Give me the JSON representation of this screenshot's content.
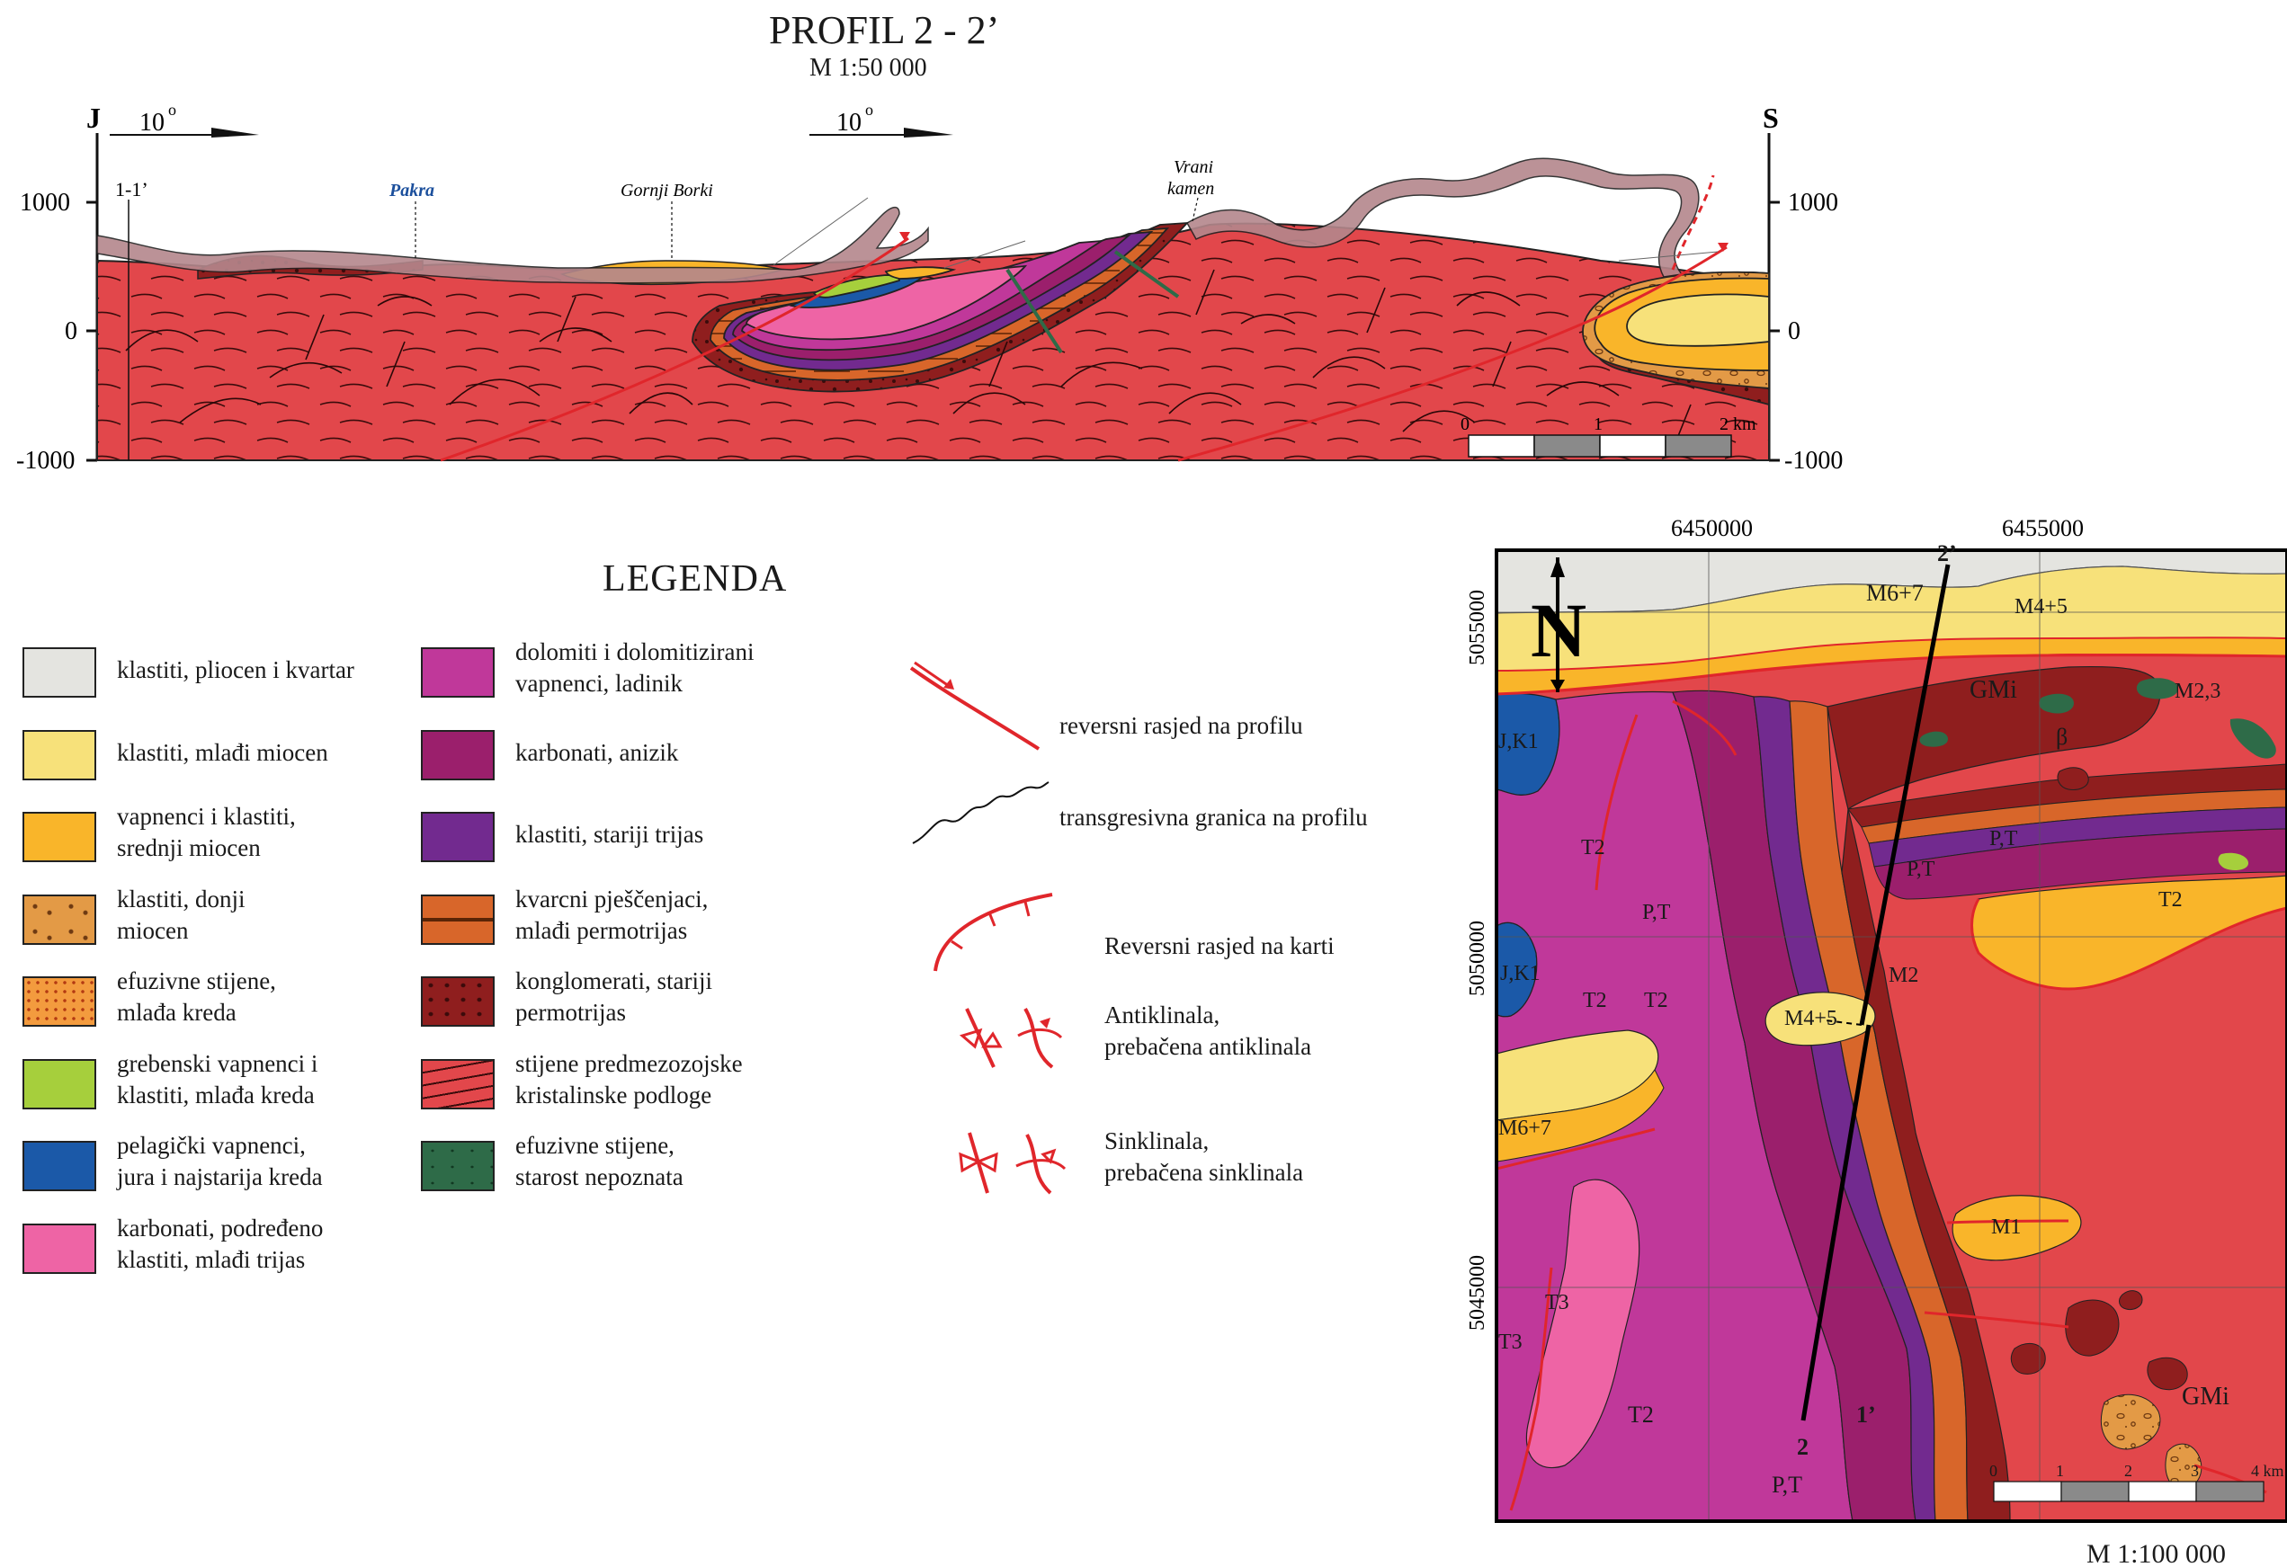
{
  "profile": {
    "title": "PROFIL  2 - 2’",
    "scale": "M 1:50 000",
    "left_end": "J",
    "right_end": "S",
    "dip1": "10",
    "dip2": "10",
    "degree_mark": "o",
    "elevations_left": [
      "1000",
      "0",
      "-1000"
    ],
    "elevations_right": [
      "1000",
      "0",
      "-1000"
    ],
    "cross_marker": "1-1’",
    "places": {
      "pakra": "Pakra",
      "gornji_borki": "Gornji Borki",
      "vrani_1": "Vrani",
      "vrani_2": "kamen"
    },
    "scalebar_labels": [
      "0",
      "1",
      "2 km"
    ]
  },
  "legend": {
    "title": "LEGENDA",
    "units": [
      {
        "name": "klastiti-pliocen-kvartar",
        "lines": [
          "klastiti, pliocen i kvartar"
        ],
        "color": "#e4e4e0"
      },
      {
        "name": "klastiti-mladji-miocen",
        "lines": [
          "klastiti, mlađi miocen"
        ],
        "color": "#f7e17a"
      },
      {
        "name": "vapnenci-srednji-miocen",
        "lines": [
          "vapnenci i klastiti,",
          "srednji miocen"
        ],
        "color": "#f9b52a"
      },
      {
        "name": "klastiti-donji-miocen",
        "lines": [
          "klastiti, donji",
          "miocen"
        ],
        "color": "#e39a46"
      },
      {
        "name": "efuzivne-mladja-kreda",
        "lines": [
          "efuzivne stijene,",
          "mlađa kreda"
        ],
        "color": "#f39b3e"
      },
      {
        "name": "grebenski-vapnenci",
        "lines": [
          "grebenski vapnenci i",
          "klastiti, mlađa kreda"
        ],
        "color": "#a6cf3c"
      },
      {
        "name": "pelagicki-vapnenci",
        "lines": [
          "pelagički vapnenci,",
          "jura i najstarija kreda"
        ],
        "color": "#1b59a8"
      },
      {
        "name": "karbonati-mladji-trijas",
        "lines": [
          "karbonati, podređeno",
          "klastiti, mlađi trijas"
        ],
        "color": "#ee64a5"
      },
      {
        "name": "dolomiti-ladinik",
        "lines": [
          "dolomiti i dolomitizirani",
          "vapnenci, ladinik"
        ],
        "color": "#c0389a"
      },
      {
        "name": "karbonati-anizik",
        "lines": [
          "karbonati, anizik"
        ],
        "color": "#9b1f6c"
      },
      {
        "name": "klastiti-stariji-trijas",
        "lines": [
          "klastiti, stariji trijas"
        ],
        "color": "#722a8f"
      },
      {
        "name": "kvarcni-pjescenjaci",
        "lines": [
          "kvarcni pješčenjaci,",
          "mlađi permotrijas"
        ],
        "color": "#d8662a"
      },
      {
        "name": "konglomerati-permotrijas",
        "lines": [
          "konglomerati, stariji",
          "permotrijas"
        ],
        "color": "#8f1e1e"
      },
      {
        "name": "kristalinska-podloga",
        "lines": [
          "stijene predmezozojske",
          "kristalinske podloge"
        ],
        "color": "#e2474b"
      },
      {
        "name": "efuzivne-nepoznata",
        "lines": [
          "efuzivne stijene,",
          "starost nepoznata"
        ],
        "color": "#2e6b48"
      }
    ],
    "symbols": [
      {
        "name": "reversni-rasjed-profil",
        "lines": [
          "reversni rasjed na profilu"
        ]
      },
      {
        "name": "transgresivna-granica",
        "lines": [
          "transgresivna granica na profilu"
        ]
      },
      {
        "name": "reversni-rasjed-karta",
        "lines": [
          "Reversni rasjed na karti"
        ]
      },
      {
        "name": "antiklinala",
        "lines": [
          "Antiklinala,",
          "prebačena antiklinala"
        ]
      },
      {
        "name": "sinklinala",
        "lines": [
          "Sinklinala,",
          "prebačena sinklinala"
        ]
      }
    ],
    "line_color": "#e0262b"
  },
  "map": {
    "easting_labels": [
      "6450000",
      "6455000"
    ],
    "northing_labels": [
      "5055000",
      "5050000",
      "5045000"
    ],
    "north_letter": "N",
    "scale": "M 1:100 000",
    "scalebar_labels": [
      "0",
      "1",
      "2",
      "3",
      "4 km"
    ],
    "section_ends": {
      "a": "2",
      "b": "2’",
      "c": "1’"
    },
    "unit_labels": {
      "m67": "M6+7",
      "m45": "M4+5",
      "gmi": "GMi",
      "gmi2": "GMi",
      "m23": "M2,3",
      "beta": "β",
      "jk": "J,K1",
      "jk2": "J,K1",
      "pt": "P,T",
      "pt2": "P,T",
      "pt3": "P,T",
      "pt4": "P,T",
      "t2a": "T2",
      "t2b": "T2",
      "t2c": "T2",
      "t2d": "T2",
      "t2e": "T2",
      "t3a": "T3",
      "t3b": "T3",
      "m2": "M2",
      "m45b": "M4+5",
      "m67b": "M6+7",
      "m1": "M1"
    }
  }
}
